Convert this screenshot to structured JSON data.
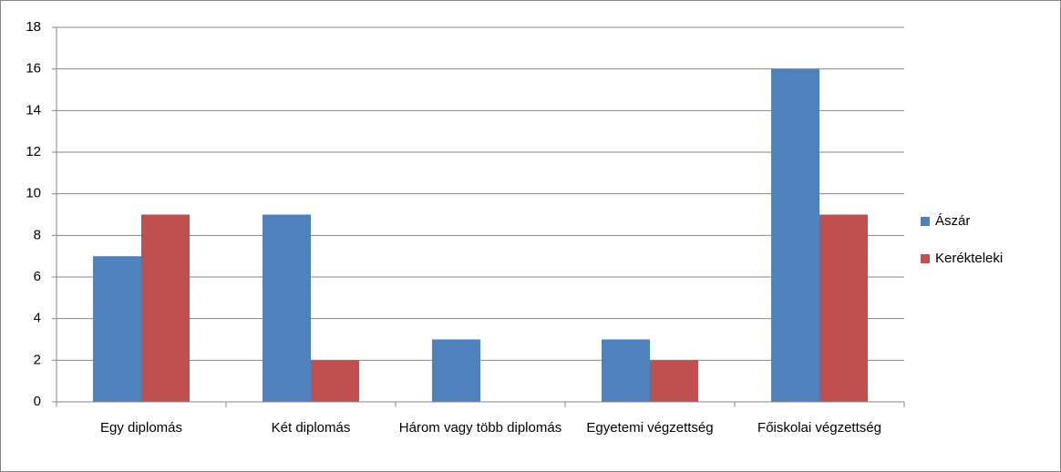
{
  "chart_data": {
    "type": "bar",
    "categories": [
      "Egy diplomás",
      "Két diplomás",
      "Három vagy több diplomás",
      "Egyetemi végzettség",
      "Főiskolai végzettség"
    ],
    "series": [
      {
        "name": "Ászár",
        "color": "#4f81bd",
        "values": [
          7,
          9,
          3,
          3,
          16
        ]
      },
      {
        "name": "Kerékteleki",
        "color": "#c0504d",
        "values": [
          9,
          2,
          0,
          2,
          9
        ]
      }
    ],
    "ylim": [
      0,
      18
    ],
    "yticks": [
      0,
      2,
      4,
      6,
      8,
      10,
      12,
      14,
      16,
      18
    ],
    "grid": true,
    "legend": "right"
  }
}
